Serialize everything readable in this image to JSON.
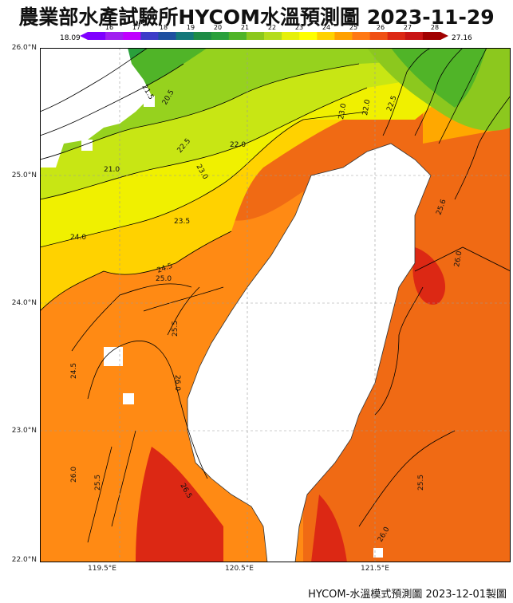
{
  "title": "農業部水產試驗所HYCOM水溫預測圖 2023-11-29",
  "colorbar": {
    "min_label": "18.09",
    "max_label": "27.16",
    "ticks": [
      "16",
      "17",
      "18",
      "19",
      "20",
      "21",
      "22",
      "23",
      "24",
      "25",
      "26",
      "27",
      "28"
    ],
    "colors": [
      "#7f00ff",
      "#a020f0",
      "#c000ff",
      "#3c3cc8",
      "#1e50a0",
      "#14787a",
      "#1e8c46",
      "#2aa03c",
      "#50b428",
      "#8cc81e",
      "#b4dc1e",
      "#e6f00a",
      "#ffff00",
      "#ffd200",
      "#ffa000",
      "#ff7814",
      "#f05014",
      "#dc2814",
      "#c81414",
      "#a00000"
    ]
  },
  "axes": {
    "lat_labels": [
      "26.0°N",
      "25.0°N",
      "24.0°N",
      "23.0°N",
      "22.0°N"
    ],
    "lon_labels": [
      "119.5°E",
      "120.5°E",
      "121.5°E"
    ]
  },
  "contour_labels": [
    "21.5",
    "20.5",
    "22.0",
    "22.5",
    "23.0",
    "23.5",
    "24.0",
    "24.5",
    "25.0",
    "25.5",
    "26.0",
    "21.0",
    "26.5",
    "25.6"
  ],
  "footer": "HYCOM-水溫模式預測圖 2023-12-01製圖"
}
